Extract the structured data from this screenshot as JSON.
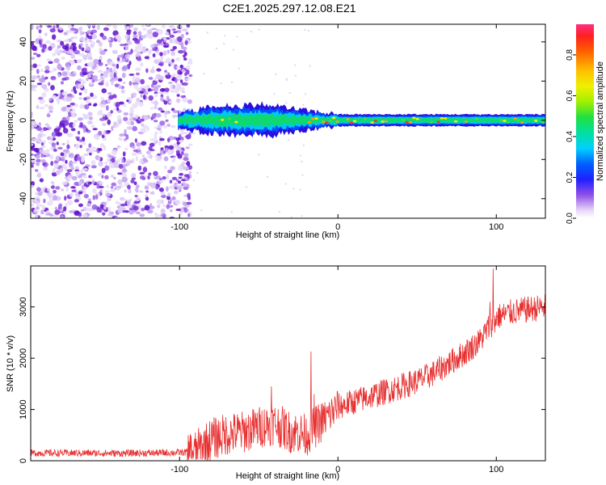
{
  "title": "C2E1.2025.297.12.08.E21",
  "colors": {
    "snr_line": "#e83030",
    "background": "#ffffff",
    "axis": "#000000"
  },
  "chart_data": [
    {
      "type": "heatmap",
      "name": "spectrogram",
      "xlabel": "Height of straight line (km)",
      "ylabel": "Frequency (Hz)",
      "xlim": [
        -194,
        131
      ],
      "ylim": [
        -50,
        49
      ],
      "x_ticks": [
        -100,
        0,
        100
      ],
      "x_tick_labels": [
        "-100",
        "0",
        "100"
      ],
      "y_ticks": [
        -40,
        -20,
        0,
        20,
        40
      ],
      "y_tick_labels": [
        "-40",
        "-20",
        "0",
        "20",
        "40"
      ],
      "noise_region_x": [
        -194,
        -93
      ],
      "signal_band": {
        "x_start": -101,
        "x_end": 131,
        "center_freq": 0,
        "half_width_segments": [
          {
            "x": -101,
            "hw": 4
          },
          {
            "x": -80,
            "hw": 7
          },
          {
            "x": -45,
            "hw": 8
          },
          {
            "x": -20,
            "hw": 5
          },
          {
            "x": 0,
            "hw": 3
          },
          {
            "x": 50,
            "hw": 3
          },
          {
            "x": 131,
            "hw": 3
          }
        ]
      },
      "colorbar": {
        "label": "Normalized spectral amplitude",
        "range": [
          0.0,
          0.95
        ],
        "ticks": [
          0.0,
          0.2,
          0.4,
          0.6,
          0.8
        ],
        "tick_labels": [
          "0.0",
          "0.2",
          "0.4",
          "0.6",
          "0.8"
        ]
      }
    },
    {
      "type": "line",
      "name": "snr",
      "xlabel": "Height of straight line (km)",
      "ylabel": "SNR (10 * v/v)",
      "xlim": [
        -194,
        131
      ],
      "ylim": [
        0,
        3800
      ],
      "x_ticks": [
        -100,
        0,
        100
      ],
      "x_tick_labels": [
        "-100",
        "0",
        "100"
      ],
      "y_ticks": [
        0,
        1000,
        2000,
        3000
      ],
      "y_tick_labels": [
        "0",
        "1000",
        "2000",
        "3000"
      ],
      "series": [
        {
          "name": "SNR",
          "x": [
            -194,
            -180,
            -160,
            -140,
            -120,
            -100,
            -90,
            -85,
            -80,
            -70,
            -60,
            -50,
            -45,
            -40,
            -35,
            -30,
            -25,
            -20,
            -18,
            -15,
            -10,
            -5,
            0,
            10,
            20,
            30,
            40,
            50,
            60,
            70,
            80,
            90,
            95,
            98,
            100,
            105,
            110,
            120,
            131
          ],
          "y": [
            150,
            150,
            150,
            145,
            150,
            160,
            180,
            300,
            420,
            520,
            560,
            650,
            700,
            720,
            650,
            560,
            550,
            500,
            560,
            640,
            780,
            900,
            1050,
            1150,
            1250,
            1350,
            1450,
            1550,
            1700,
            1900,
            2100,
            2350,
            2600,
            2700,
            2800,
            2850,
            2900,
            2950,
            3000
          ],
          "spikes": [
            {
              "x": -17,
              "y": 2130
            },
            {
              "x": -15,
              "y": 1300
            },
            {
              "x": -42,
              "y": 1450
            },
            {
              "x": 89,
              "y": 2500
            },
            {
              "x": 96,
              "y": 3100
            },
            {
              "x": 98,
              "y": 3750
            },
            {
              "x": 99,
              "y": 2500
            }
          ]
        }
      ]
    }
  ]
}
